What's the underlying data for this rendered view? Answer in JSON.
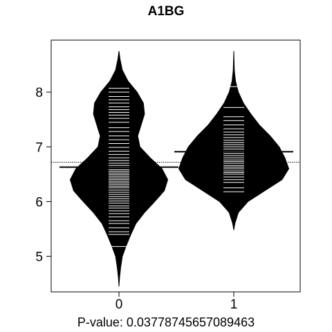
{
  "chart_data": {
    "type": "beanplot",
    "title": "A1BG",
    "xlabel": "P-value: 0.0377874565708946​3",
    "categories": [
      "0",
      "1"
    ],
    "ylim": [
      4.35,
      8.95
    ],
    "yticks": [
      5,
      6,
      7,
      8
    ],
    "overall_mean": 6.72,
    "beans": [
      {
        "category": "0",
        "mean": 6.63,
        "range": [
          4.45,
          8.75
        ],
        "density": [
          [
            4.45,
            0.0
          ],
          [
            4.6,
            0.01
          ],
          [
            4.8,
            0.03
          ],
          [
            5.0,
            0.06
          ],
          [
            5.2,
            0.13
          ],
          [
            5.4,
            0.21
          ],
          [
            5.6,
            0.3
          ],
          [
            5.8,
            0.45
          ],
          [
            6.0,
            0.63
          ],
          [
            6.2,
            0.8
          ],
          [
            6.4,
            0.86
          ],
          [
            6.6,
            0.76
          ],
          [
            6.8,
            0.55
          ],
          [
            7.0,
            0.37
          ],
          [
            7.2,
            0.33
          ],
          [
            7.4,
            0.39
          ],
          [
            7.6,
            0.45
          ],
          [
            7.8,
            0.43
          ],
          [
            8.0,
            0.32
          ],
          [
            8.2,
            0.16
          ],
          [
            8.4,
            0.06
          ],
          [
            8.6,
            0.02
          ],
          [
            8.75,
            0.0
          ]
        ],
        "points": [
          5.18,
          5.4,
          5.45,
          5.52,
          5.6,
          5.65,
          5.72,
          5.78,
          5.83,
          5.88,
          5.92,
          5.97,
          6.01,
          6.05,
          6.09,
          6.13,
          6.17,
          6.21,
          6.25,
          6.28,
          6.31,
          6.34,
          6.37,
          6.4,
          6.43,
          6.46,
          6.49,
          6.52,
          6.55,
          6.58,
          6.62,
          6.66,
          6.7,
          6.75,
          6.8,
          6.86,
          6.92,
          6.99,
          7.06,
          7.13,
          7.2,
          7.28,
          7.35,
          7.45,
          7.52,
          7.58,
          7.63,
          7.68,
          7.73,
          7.8,
          7.86,
          7.92,
          8.0,
          8.07
        ]
      },
      {
        "category": "1",
        "mean": 6.91,
        "range": [
          5.48,
          8.75
        ],
        "density": [
          [
            5.48,
            0.0
          ],
          [
            5.6,
            0.02
          ],
          [
            5.8,
            0.08
          ],
          [
            6.0,
            0.25
          ],
          [
            6.2,
            0.55
          ],
          [
            6.4,
            0.85
          ],
          [
            6.6,
            0.97
          ],
          [
            6.8,
            0.9
          ],
          [
            7.0,
            0.8
          ],
          [
            7.2,
            0.64
          ],
          [
            7.4,
            0.45
          ],
          [
            7.6,
            0.3
          ],
          [
            7.8,
            0.17
          ],
          [
            8.0,
            0.08
          ],
          [
            8.2,
            0.03
          ],
          [
            8.4,
            0.01
          ],
          [
            8.75,
            0.0
          ]
        ],
        "points": [
          6.18,
          6.25,
          6.35,
          6.4,
          6.45,
          6.5,
          6.53,
          6.56,
          6.6,
          6.63,
          6.66,
          6.7,
          6.73,
          6.76,
          6.8,
          6.84,
          6.88,
          6.92,
          6.96,
          7.0,
          7.04,
          7.08,
          7.12,
          7.17,
          7.22,
          7.27,
          7.33,
          7.4,
          7.48,
          7.55,
          7.72,
          8.1
        ]
      }
    ],
    "colors": {
      "bean": "#000000",
      "line": "#ffffff",
      "axis": "#000000"
    },
    "grid": false
  }
}
